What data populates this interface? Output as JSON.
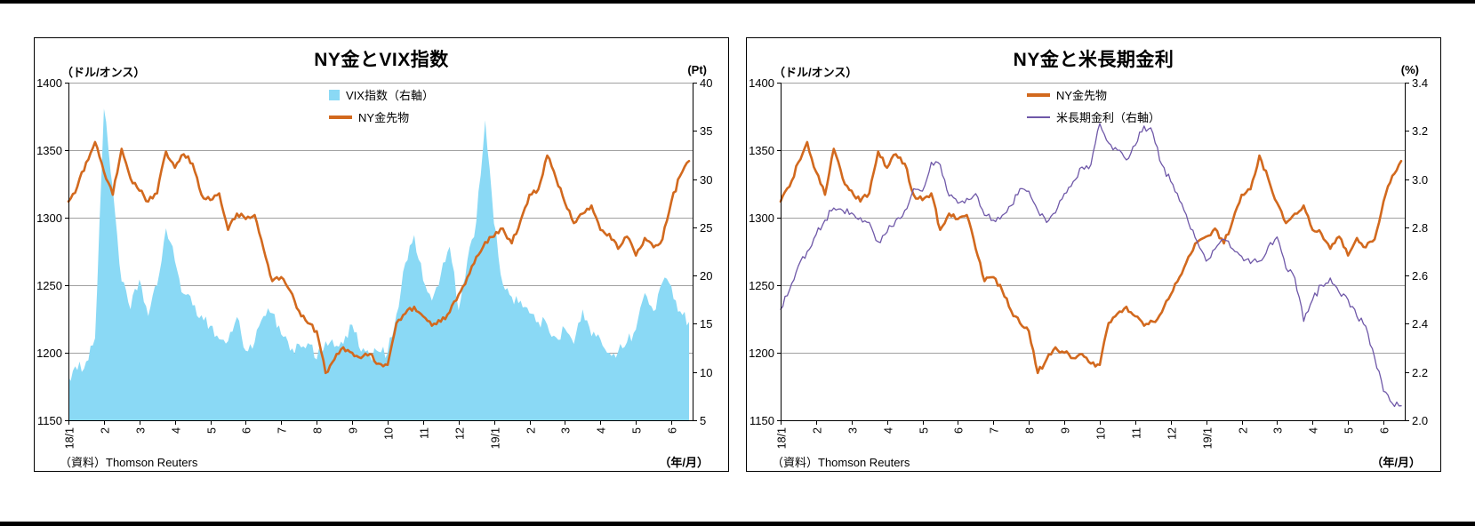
{
  "chart_data": [
    {
      "type": "combo",
      "title": "NY金とVIX指数",
      "left_axis_unit": "（ドル/オンス）",
      "right_axis_unit": "(Pt)",
      "x_axis_unit": "（年/月）",
      "source": "（資料）Thomson Reuters",
      "left_ylim": [
        1150,
        1400
      ],
      "left_yticks": [
        1400,
        1350,
        1300,
        1250,
        1200,
        1150
      ],
      "right_ylim": [
        5,
        40
      ],
      "right_yticks": [
        40,
        35,
        30,
        25,
        20,
        15,
        10,
        5
      ],
      "right_tick_decimals": 0,
      "x_tick_labels": [
        "18/1",
        "2",
        "3",
        "4",
        "5",
        "6",
        "7",
        "8",
        "9",
        "10",
        "11",
        "12",
        "19/1",
        "2",
        "3",
        "4",
        "5",
        "6"
      ],
      "x_step_months": 0.25,
      "x_max_months": 17.6,
      "grid": "horizontal",
      "legend_position": "top-center",
      "legend": [
        {
          "label": "VIX指数（右軸）",
          "swatch": "area",
          "color": "#8AD9F5"
        },
        {
          "label": "NY金先物",
          "swatch": "line",
          "color": "#D2691E"
        }
      ],
      "series": [
        {
          "id": "vix",
          "name": "VIX指数（右軸）",
          "axis": "right",
          "type": "area",
          "color": "#8AD9F5",
          "jitter": 0.7,
          "values": [
            9.5,
            10.2,
            11.1,
            13.5,
            37.3,
            29.0,
            19.4,
            16.5,
            19.6,
            15.8,
            19.0,
            24.9,
            21.5,
            18.1,
            16.9,
            15.9,
            14.8,
            13.4,
            13.2,
            15.7,
            12.2,
            13.1,
            15.8,
            16.1,
            13.9,
            12.2,
            12.9,
            13.0,
            11.3,
            13.2,
            12.6,
            12.9,
            14.9,
            12.1,
            11.7,
            12.1,
            12.0,
            16.0,
            21.3,
            24.2,
            19.5,
            17.4,
            20.1,
            23.0,
            16.4,
            21.6,
            25.6,
            36.1,
            25.4,
            19.1,
            17.8,
            17.4,
            16.1,
            15.2,
            14.9,
            13.6,
            14.5,
            12.9,
            16.5,
            13.7,
            13.4,
            12.0,
            12.1,
            13.1,
            14.4,
            18.2,
            16.3,
            19.3,
            18.9,
            16.3,
            15.2
          ]
        },
        {
          "id": "gold",
          "name": "NY金先物",
          "axis": "left",
          "type": "line",
          "color": "#D2691E",
          "width": 2.6,
          "jitter": 2.0,
          "values": [
            1312,
            1323,
            1341,
            1356,
            1334,
            1317,
            1351,
            1329,
            1320,
            1312,
            1318,
            1349,
            1337,
            1347,
            1340,
            1317,
            1313,
            1318,
            1291,
            1303,
            1299,
            1302,
            1277,
            1253,
            1256,
            1246,
            1231,
            1222,
            1216,
            1185,
            1195,
            1204,
            1200,
            1196,
            1199,
            1192,
            1191,
            1222,
            1229,
            1234,
            1227,
            1220,
            1223,
            1230,
            1243,
            1256,
            1271,
            1282,
            1286,
            1292,
            1281,
            1298,
            1317,
            1321,
            1346,
            1329,
            1311,
            1296,
            1303,
            1309,
            1291,
            1288,
            1277,
            1286,
            1272,
            1285,
            1278,
            1284,
            1312,
            1331,
            1342
          ]
        }
      ]
    },
    {
      "type": "combo",
      "title": "NY金と米長期金利",
      "left_axis_unit": "（ドル/オンス）",
      "right_axis_unit": "(%)",
      "x_axis_unit": "（年/月）",
      "source": "（資料）Thomson Reuters",
      "left_ylim": [
        1150,
        1400
      ],
      "left_yticks": [
        1400,
        1350,
        1300,
        1250,
        1200,
        1150
      ],
      "right_ylim": [
        2.0,
        3.4
      ],
      "right_yticks": [
        3.4,
        3.2,
        3.0,
        2.8,
        2.6,
        2.4,
        2.2,
        2.0
      ],
      "right_tick_decimals": 1,
      "x_tick_labels": [
        "18/1",
        "2",
        "3",
        "4",
        "5",
        "6",
        "7",
        "8",
        "9",
        "10",
        "11",
        "12",
        "19/1",
        "2",
        "3",
        "4",
        "5",
        "6"
      ],
      "x_step_months": 0.25,
      "x_max_months": 17.6,
      "grid": "horizontal",
      "legend_position": "top-center",
      "legend": [
        {
          "label": "NY金先物",
          "swatch": "line",
          "color": "#D2691E"
        },
        {
          "label": "米長期金利（右軸）",
          "swatch": "thinline",
          "color": "#6F58A8"
        }
      ],
      "series": [
        {
          "id": "gold",
          "name": "NY金先物",
          "axis": "left",
          "type": "line",
          "color": "#D2691E",
          "width": 2.6,
          "jitter": 2.0,
          "values": [
            1312,
            1323,
            1341,
            1356,
            1334,
            1317,
            1351,
            1329,
            1320,
            1312,
            1318,
            1349,
            1337,
            1347,
            1340,
            1317,
            1313,
            1318,
            1291,
            1303,
            1299,
            1302,
            1277,
            1253,
            1256,
            1246,
            1231,
            1222,
            1216,
            1185,
            1195,
            1204,
            1200,
            1196,
            1199,
            1192,
            1191,
            1222,
            1229,
            1234,
            1227,
            1220,
            1223,
            1230,
            1243,
            1256,
            1271,
            1282,
            1286,
            1292,
            1281,
            1298,
            1317,
            1321,
            1346,
            1329,
            1311,
            1296,
            1303,
            1309,
            1291,
            1288,
            1277,
            1286,
            1272,
            1285,
            1278,
            1284,
            1312,
            1331,
            1342
          ]
        },
        {
          "id": "us10y",
          "name": "米長期金利（右軸）",
          "axis": "right",
          "type": "line",
          "color": "#6F58A8",
          "width": 1.3,
          "jitter": 0.015,
          "values": [
            2.46,
            2.54,
            2.64,
            2.7,
            2.77,
            2.83,
            2.88,
            2.87,
            2.86,
            2.84,
            2.82,
            2.74,
            2.78,
            2.83,
            2.87,
            2.96,
            2.95,
            3.07,
            3.06,
            2.93,
            2.9,
            2.92,
            2.94,
            2.85,
            2.83,
            2.85,
            2.89,
            2.96,
            2.95,
            2.87,
            2.82,
            2.86,
            2.94,
            2.99,
            3.05,
            3.06,
            3.23,
            3.15,
            3.12,
            3.08,
            3.14,
            3.22,
            3.19,
            3.06,
            2.99,
            2.91,
            2.82,
            2.74,
            2.66,
            2.71,
            2.75,
            2.71,
            2.68,
            2.65,
            2.66,
            2.72,
            2.76,
            2.63,
            2.59,
            2.41,
            2.5,
            2.56,
            2.59,
            2.53,
            2.5,
            2.43,
            2.39,
            2.26,
            2.12,
            2.07,
            2.06
          ]
        }
      ]
    }
  ],
  "style": {
    "grid_color": "#A0A0A0",
    "axis_color": "#000000"
  }
}
